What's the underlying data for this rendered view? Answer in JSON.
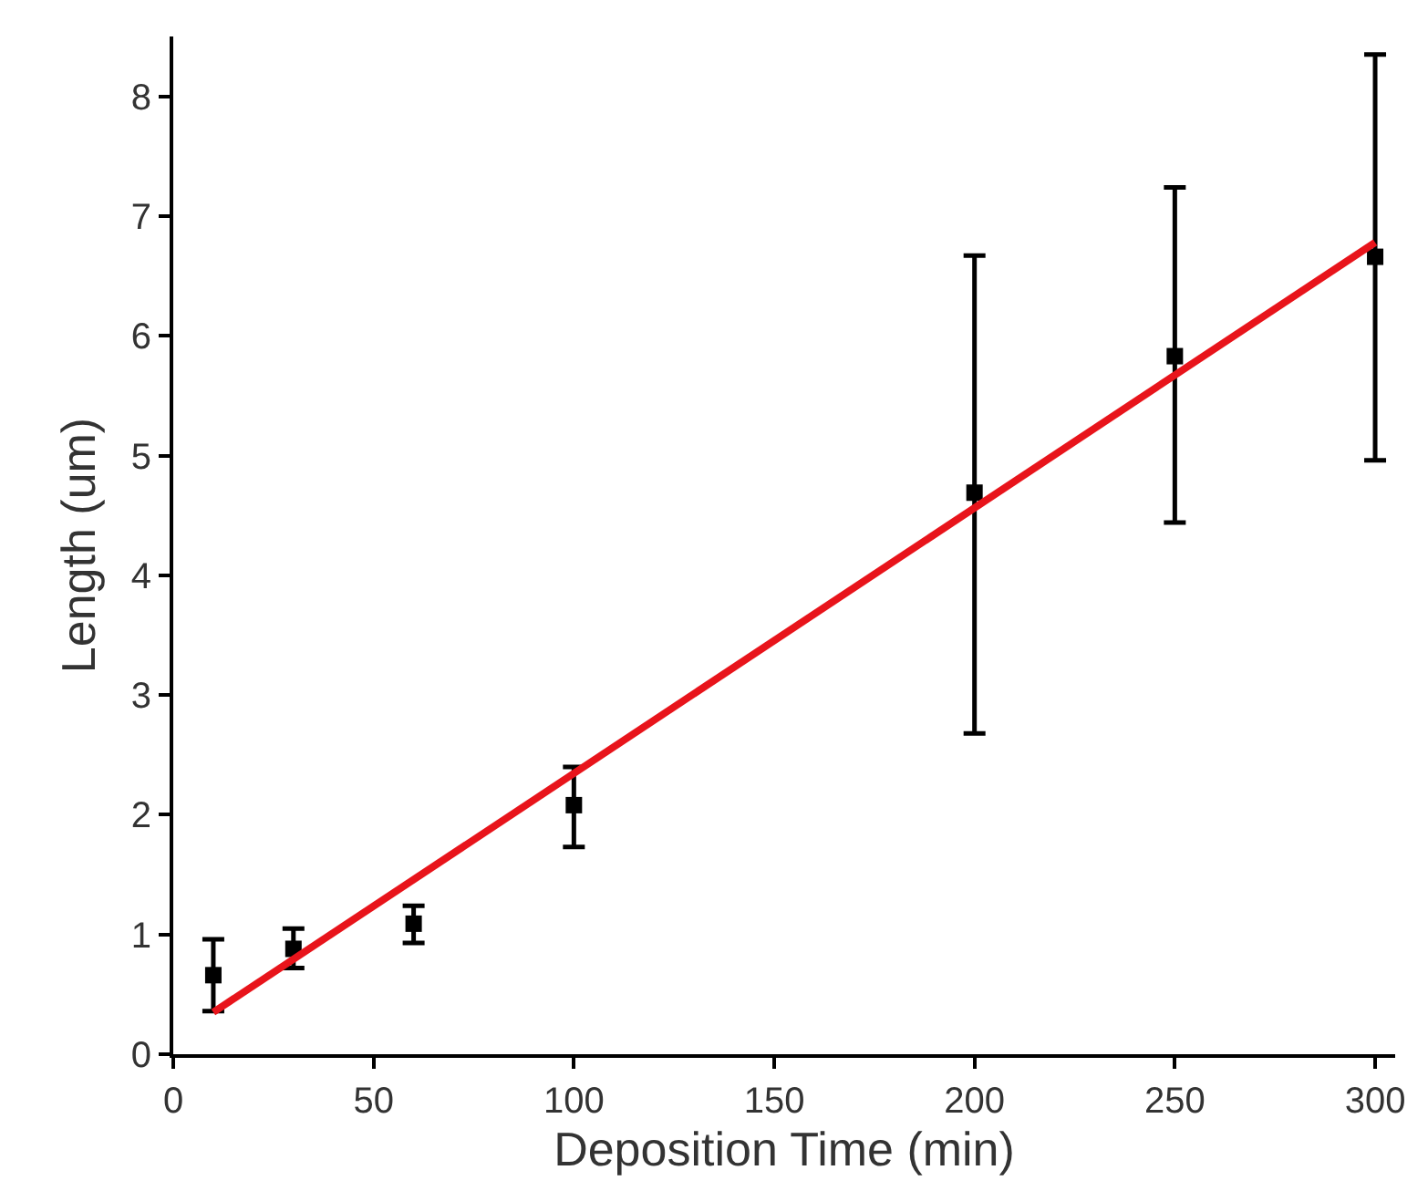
{
  "chart_data": {
    "type": "scatter",
    "xlabel": "Deposition Time (min)",
    "ylabel": "Length (um)",
    "xlim": [
      0,
      305
    ],
    "ylim": [
      0,
      8.5
    ],
    "xticks": [
      0,
      50,
      100,
      150,
      200,
      250,
      300
    ],
    "yticks": [
      0,
      1,
      2,
      3,
      4,
      5,
      6,
      7,
      8
    ],
    "grid": false,
    "series": [
      {
        "marker": "square",
        "color": "#000000",
        "x": [
          10,
          30,
          60,
          100,
          200,
          250,
          300
        ],
        "values": [
          0.66,
          0.88,
          1.09,
          2.08,
          4.69,
          5.83,
          6.66
        ],
        "errors": [
          [
            0.36,
            0.96
          ],
          [
            0.72,
            1.05
          ],
          [
            0.93,
            1.24
          ],
          [
            1.73,
            2.4
          ],
          [
            2.68,
            6.67
          ],
          [
            4.44,
            7.24
          ],
          [
            4.96,
            8.35
          ]
        ]
      },
      {
        "type": "line",
        "marker": "none",
        "color": "#e8141b",
        "x": [
          10,
          300
        ],
        "values": [
          0.35,
          6.78
        ]
      }
    ]
  }
}
